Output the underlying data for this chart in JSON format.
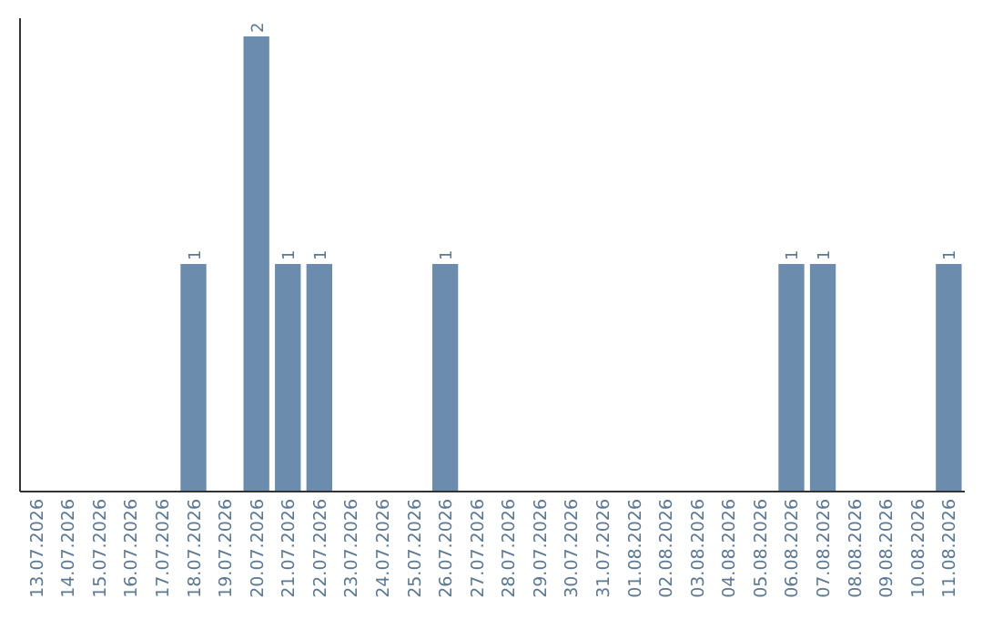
{
  "chart_data": {
    "type": "bar",
    "categories": [
      "13.07.2026",
      "14.07.2026",
      "15.07.2026",
      "16.07.2026",
      "17.07.2026",
      "18.07.2026",
      "19.07.2026",
      "20.07.2026",
      "21.07.2026",
      "22.07.2026",
      "23.07.2026",
      "24.07.2026",
      "25.07.2026",
      "26.07.2026",
      "27.07.2026",
      "28.07.2026",
      "29.07.2026",
      "30.07.2026",
      "31.07.2026",
      "01.08.2026",
      "02.08.2026",
      "03.08.2026",
      "04.08.2026",
      "05.08.2026",
      "06.08.2026",
      "07.08.2026",
      "08.08.2026",
      "09.08.2026",
      "10.08.2026",
      "11.08.2026"
    ],
    "values": [
      0,
      0,
      0,
      0,
      0,
      1,
      0,
      2,
      1,
      1,
      0,
      0,
      0,
      1,
      0,
      0,
      0,
      0,
      0,
      0,
      0,
      0,
      0,
      0,
      1,
      1,
      0,
      0,
      0,
      1
    ],
    "value_labels": [
      null,
      null,
      null,
      null,
      null,
      "1",
      null,
      "2",
      "1",
      "1",
      null,
      null,
      null,
      "1",
      null,
      null,
      null,
      null,
      null,
      null,
      null,
      null,
      null,
      null,
      "1",
      "1",
      null,
      null,
      null,
      "1"
    ],
    "color": "#6b8cad"
  }
}
